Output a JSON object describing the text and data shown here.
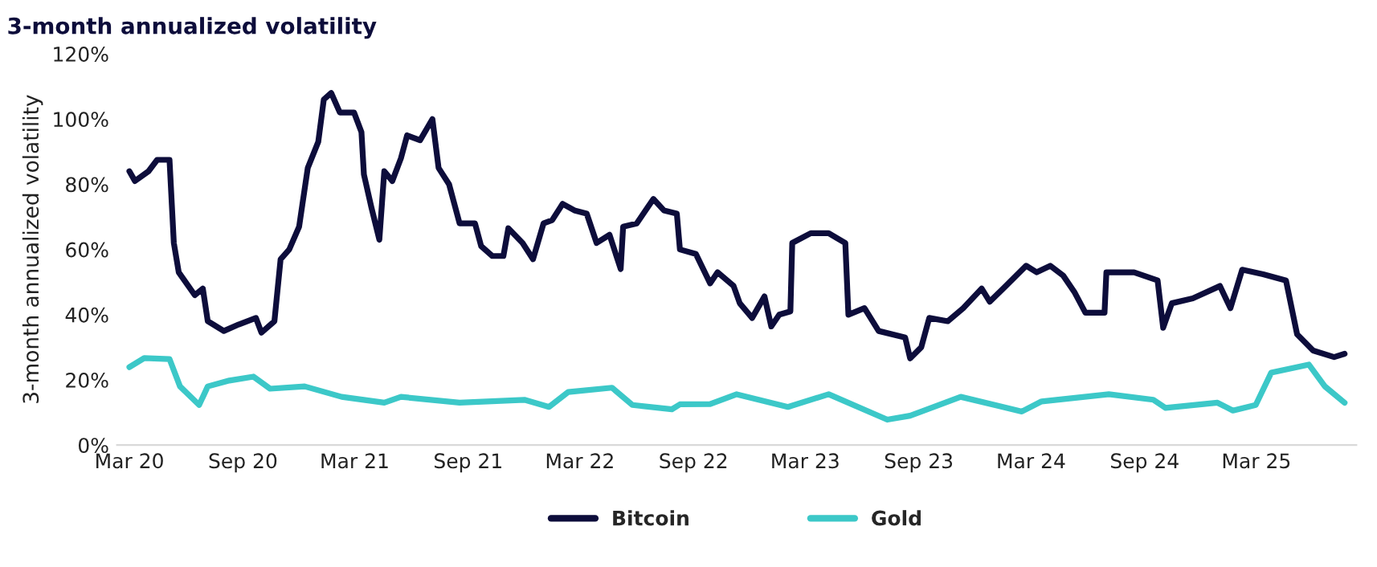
{
  "chart_data": {
    "type": "line",
    "title": "3-month annualized volatility",
    "ylabel": "3-month annualized volatility",
    "xticks": [
      {
        "value": "2020-03-01",
        "label": "Mar 20"
      },
      {
        "value": "2020-09-01",
        "label": "Sep 20"
      },
      {
        "value": "2021-03-01",
        "label": "Mar 21"
      },
      {
        "value": "2021-09-01",
        "label": "Sep 21"
      },
      {
        "value": "2022-03-01",
        "label": "Mar 22"
      },
      {
        "value": "2022-09-01",
        "label": "Sep 22"
      },
      {
        "value": "2023-03-01",
        "label": "Mar 23"
      },
      {
        "value": "2023-09-01",
        "label": "Sep 23"
      },
      {
        "value": "2024-03-01",
        "label": "Mar 24"
      },
      {
        "value": "2024-09-01",
        "label": "Sep 24"
      },
      {
        "value": "2025-03-01",
        "label": "Mar 25"
      }
    ],
    "xlim": [
      "2020-02-10",
      "2025-08-10"
    ],
    "ylim": [
      0,
      120
    ],
    "yticks": [
      {
        "value": 0,
        "label": "0%"
      },
      {
        "value": 20,
        "label": "20%"
      },
      {
        "value": 40,
        "label": "40%"
      },
      {
        "value": 60,
        "label": "60%"
      },
      {
        "value": 80,
        "label": "80%"
      },
      {
        "value": 100,
        "label": "100%"
      },
      {
        "value": 120,
        "label": "120%"
      }
    ],
    "grid": false,
    "legend": "bottom",
    "series": [
      {
        "name": "Bitcoin",
        "color": "#0d0d3b",
        "x": [
          "2020-03-01",
          "2020-03-10",
          "2020-04-01",
          "2020-04-15",
          "2020-05-05",
          "2020-05-12",
          "2020-05-20",
          "2020-06-15",
          "2020-06-28",
          "2020-07-06",
          "2020-08-01",
          "2020-08-25",
          "2020-09-22",
          "2020-10-01",
          "2020-10-22",
          "2020-11-01",
          "2020-11-15",
          "2020-12-01",
          "2020-12-15",
          "2021-01-01",
          "2021-01-10",
          "2021-01-22",
          "2021-02-05",
          "2021-02-28",
          "2021-03-12",
          "2021-03-16",
          "2021-03-28",
          "2021-04-10",
          "2021-04-18",
          "2021-05-01",
          "2021-05-15",
          "2021-05-25",
          "2021-06-15",
          "2021-07-05",
          "2021-07-15",
          "2021-08-01",
          "2021-08-18",
          "2021-09-12",
          "2021-09-22",
          "2021-10-10",
          "2021-10-28",
          "2021-11-05",
          "2021-11-28",
          "2021-12-15",
          "2022-01-01",
          "2022-01-15",
          "2022-02-01",
          "2022-02-20",
          "2022-03-12",
          "2022-03-28",
          "2022-04-18",
          "2022-05-06",
          "2022-05-10",
          "2022-06-01",
          "2022-06-28",
          "2022-07-15",
          "2022-08-05",
          "2022-08-10",
          "2022-09-05",
          "2022-09-28",
          "2022-10-10",
          "2022-11-05",
          "2022-11-15",
          "2022-12-05",
          "2022-12-25",
          "2023-01-05",
          "2023-01-18",
          "2023-02-05",
          "2023-02-08",
          "2023-03-10",
          "2023-04-08",
          "2023-05-05",
          "2023-05-10",
          "2023-06-05",
          "2023-06-28",
          "2023-08-10",
          "2023-08-18",
          "2023-09-05",
          "2023-09-18",
          "2023-10-18",
          "2023-11-12",
          "2023-12-12",
          "2023-12-25",
          "2024-01-20",
          "2024-02-22",
          "2024-03-10",
          "2024-04-01",
          "2024-04-22",
          "2024-05-10",
          "2024-05-28",
          "2024-06-28",
          "2024-07-01",
          "2024-08-15",
          "2024-09-22",
          "2024-10-01",
          "2024-10-15",
          "2024-11-18",
          "2025-01-01",
          "2025-01-18",
          "2025-02-06",
          "2025-03-12",
          "2025-04-18",
          "2025-05-06",
          "2025-06-01",
          "2025-07-05",
          "2025-07-22"
        ],
        "values": [
          84,
          81,
          84,
          87.5,
          87.5,
          62,
          53,
          46,
          48,
          38,
          35,
          37,
          39,
          34.5,
          38,
          57,
          60,
          67,
          85,
          93,
          106,
          108,
          102,
          102,
          96,
          83,
          73,
          63,
          84,
          81,
          88,
          95,
          93.5,
          100,
          85,
          80,
          68,
          68,
          61,
          58,
          58,
          66.5,
          62,
          57,
          68,
          69,
          74,
          72,
          71,
          62,
          64.5,
          54,
          67,
          68,
          75.5,
          72,
          71,
          60,
          58.6,
          49.6,
          53,
          48.8,
          43.5,
          39,
          45.6,
          36.4,
          40,
          41,
          62,
          65,
          65,
          62,
          40,
          42,
          35,
          33,
          26.6,
          30,
          39,
          38,
          42,
          48,
          44,
          48.8,
          55,
          53,
          55,
          52,
          47,
          40.6,
          40.6,
          53,
          53,
          50.5,
          36,
          43.5,
          45,
          48.8,
          42,
          53.8,
          52.4,
          50.5,
          34,
          29,
          27,
          28
        ]
      },
      {
        "name": "Gold",
        "color": "#3cc8c8",
        "x": [
          "2020-03-01",
          "2020-03-25",
          "2020-05-05",
          "2020-05-22",
          "2020-06-22",
          "2020-07-06",
          "2020-08-10",
          "2020-09-18",
          "2020-10-15",
          "2020-12-10",
          "2021-02-08",
          "2021-04-18",
          "2021-05-15",
          "2021-08-18",
          "2021-12-01",
          "2022-01-10",
          "2022-02-10",
          "2022-04-22",
          "2022-05-25",
          "2022-07-28",
          "2022-08-10",
          "2022-09-28",
          "2022-11-10",
          "2023-02-01",
          "2023-04-08",
          "2023-07-12",
          "2023-08-18",
          "2023-11-08",
          "2024-02-15",
          "2024-03-18",
          "2024-07-05",
          "2024-09-15",
          "2024-10-05",
          "2024-12-28",
          "2025-01-22",
          "2025-02-28",
          "2025-03-25",
          "2025-05-25",
          "2025-06-20",
          "2025-07-22"
        ],
        "values": [
          23.9,
          26.7,
          26.4,
          18,
          12.3,
          18,
          19.8,
          21,
          17.3,
          18,
          14.8,
          13,
          14.8,
          13,
          13.9,
          11.7,
          16.3,
          17.6,
          12.3,
          11,
          12.5,
          12.6,
          15.6,
          11.7,
          15.6,
          7.8,
          9,
          14.8,
          10.3,
          13.4,
          15.6,
          13.9,
          11.4,
          13,
          10.6,
          12.3,
          22.2,
          24.7,
          18,
          13
        ]
      }
    ]
  }
}
